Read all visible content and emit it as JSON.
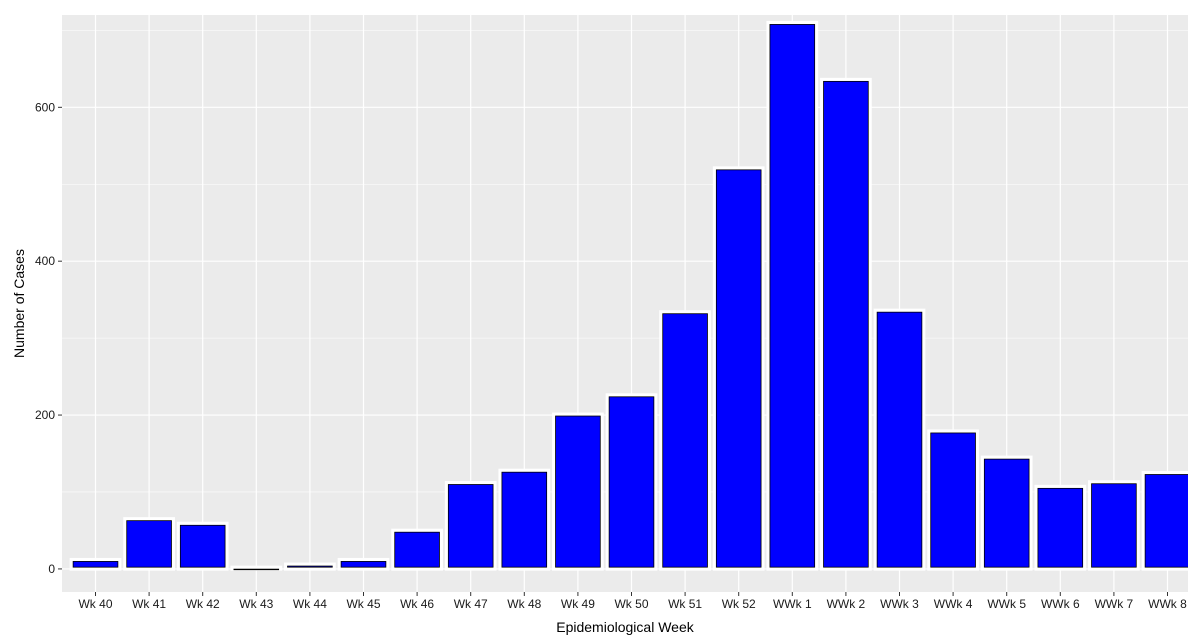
{
  "chart_data": {
    "type": "bar",
    "title": "",
    "xlabel": "Epidemiological Week",
    "ylabel": "Number of Cases",
    "ylim": [
      -30,
      720
    ],
    "yticks": [
      0,
      200,
      400,
      600
    ],
    "grid": true,
    "categories": [
      "Wk 40",
      "Wk 41",
      "Wk 42",
      "Wk 43",
      "Wk 44",
      "Wk 45",
      "Wk 46",
      "Wk 47",
      "Wk 48",
      "Wk 49",
      "Wk 50",
      "Wk 51",
      "Wk 52",
      "WWk 1",
      "WWk 2",
      "WWk 3",
      "WWk 4",
      "WWk 5",
      "WWk 6",
      "WWk 7",
      "WWk 8"
    ],
    "values": [
      12,
      65,
      59,
      2,
      6,
      12,
      50,
      112,
      128,
      201,
      226,
      334,
      521,
      710,
      636,
      336,
      179,
      145,
      107,
      113,
      125
    ],
    "colors": {
      "panel_background": "#ebebeb",
      "grid_line": "#ffffff",
      "bar_fill": "#0000ff",
      "bar_outline": "#ffffff",
      "bar_edge": "#000000",
      "tick_mark": "#333333"
    }
  }
}
